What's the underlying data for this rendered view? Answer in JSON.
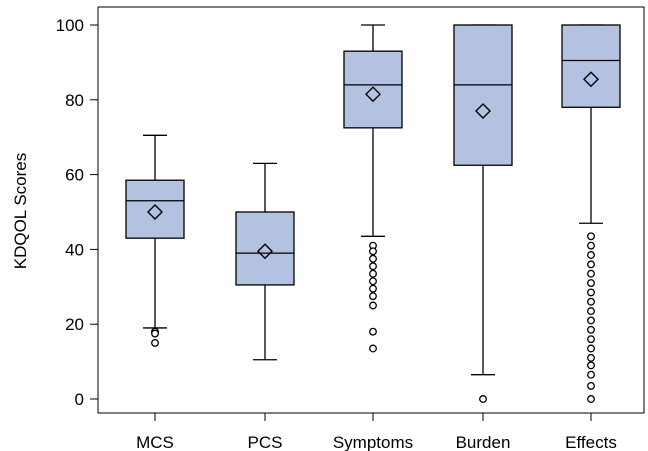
{
  "chart_data": {
    "type": "box",
    "ylabel": "KDQOL Scores",
    "xlabel": "",
    "ylim": [
      0,
      100
    ],
    "yticks": [
      0,
      20,
      40,
      60,
      80,
      100
    ],
    "categories": [
      "MCS",
      "PCS",
      "Symptoms",
      "Burden",
      "Effects"
    ],
    "box_color": "#b4c2e2",
    "series": [
      {
        "category": "MCS",
        "whisker_low": 19,
        "q1": 43,
        "median": 53,
        "q3": 58.5,
        "whisker_high": 70.5,
        "mean": 50,
        "outliers": [
          18,
          17.5,
          15
        ]
      },
      {
        "category": "PCS",
        "whisker_low": 10.5,
        "q1": 30.5,
        "median": 39,
        "q3": 50,
        "whisker_high": 63,
        "mean": 39.5,
        "outliers": []
      },
      {
        "category": "Symptoms",
        "whisker_low": 43.5,
        "q1": 72.5,
        "median": 84,
        "q3": 93,
        "whisker_high": 100,
        "mean": 81.5,
        "outliers": [
          41,
          39.5,
          37.5,
          35.5,
          33.5,
          31.5,
          29.5,
          27.5,
          25,
          18,
          13.5
        ]
      },
      {
        "category": "Burden",
        "whisker_low": 6.5,
        "q1": 62.5,
        "median": 84,
        "q3": 100,
        "whisker_high": 100,
        "mean": 77,
        "outliers": [
          0
        ]
      },
      {
        "category": "Effects",
        "whisker_low": 47,
        "q1": 78,
        "median": 90.5,
        "q3": 100,
        "whisker_high": 100,
        "mean": 85.5,
        "outliers": [
          43.5,
          41,
          38.5,
          36,
          33.5,
          31,
          28.5,
          26,
          23.5,
          21,
          18.5,
          16,
          13.5,
          11,
          9,
          6.5,
          3.5,
          0
        ]
      }
    ]
  }
}
